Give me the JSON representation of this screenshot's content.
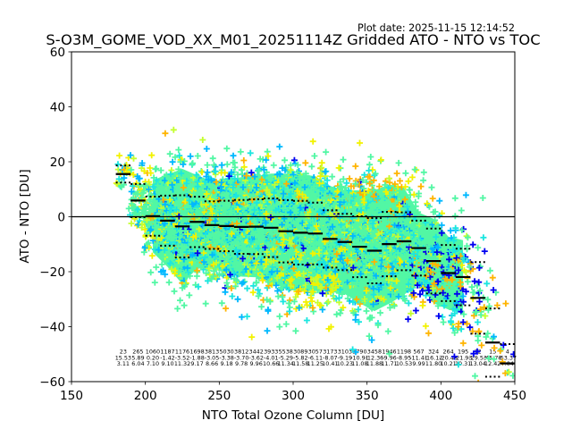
{
  "chart_data": {
    "type": "scatter",
    "title": "S-O3M_GOME_VOD_XX_M01_20251114Z Gridded ATO - NTO vs TOC",
    "plot_date": "Plot date: 2025-11-15 12:14:52",
    "xlabel": "NTO Total Ozone Column [DU]",
    "ylabel": "ATO - NTO [DU]",
    "xlim": [
      150,
      450
    ],
    "ylim": [
      -60,
      60
    ],
    "xticks": [
      150,
      200,
      250,
      300,
      350,
      400,
      450
    ],
    "xtick_labels": [
      "150",
      "200",
      "250",
      "300",
      "350",
      "400",
      "450"
    ],
    "yticks": [
      60,
      40,
      20,
      0,
      -20,
      -40,
      -60
    ],
    "ytick_labels": [
      "60",
      "40",
      "20",
      "0",
      "−20",
      "−40",
      "−60"
    ],
    "grid": false,
    "legend": "none",
    "marker": "+",
    "reference_line": {
      "y": 0,
      "color": "#000000"
    },
    "bin_width": 10,
    "bins": {
      "x_start": [
        180,
        190,
        200,
        210,
        220,
        230,
        240,
        250,
        260,
        270,
        280,
        290,
        300,
        310,
        320,
        330,
        340,
        350,
        360,
        370,
        380,
        390,
        400,
        410,
        420,
        430,
        440
      ],
      "count": [
        23,
        265,
        1060,
        1187,
        1176,
        1698,
        3813,
        5030,
        3812,
        3442,
        3933,
        5538,
        3089,
        3057,
        3173,
        3103,
        3790,
        3458,
        1946,
        1198,
        567,
        324,
        264,
        195,
        72,
        15,
        4
      ],
      "median": [
        15.53,
        5.89,
        0.2,
        -1.42,
        -3.52,
        -1.88,
        -3.05,
        -3.38,
        -3.7,
        -3.62,
        -4.01,
        -5.29,
        -5.82,
        -6.11,
        -8.07,
        -9.19,
        -10.91,
        -12.36,
        -9.96,
        -8.95,
        -11.41,
        -16.12,
        -20.48,
        -21.93,
        -29.53,
        -45.78,
        -53.37
      ],
      "std": [
        3.11,
        6.04,
        7.1,
        9.1,
        11.32,
        9.17,
        8.66,
        9.18,
        9.78,
        9.96,
        10.66,
        11.34,
        11.58,
        11.25,
        10.41,
        10.23,
        11.08,
        11.88,
        11.71,
        10.53,
        9.99,
        11.8,
        10.21,
        10.31,
        13.04,
        12.42,
        7.04
      ]
    },
    "median_line_color": "#000000",
    "std_line_style": "dotted",
    "palette": {
      "aqua": "#52f7a4",
      "cyan": "#1ce6e0",
      "sky": "#00b8ff",
      "yellowgreen": "#c4ff30",
      "yellow": "#f2f200",
      "orange": "#ffb400",
      "blue": "#0000f0"
    }
  }
}
